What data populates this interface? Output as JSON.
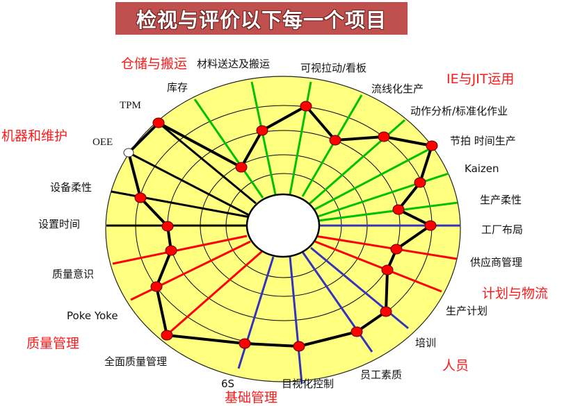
{
  "title": "检视与评价以下每一个项目",
  "colors": {
    "banner": "#C0504D",
    "fill": "#FFFF80",
    "machine": "#000000",
    "ie_jit": "#00C000",
    "quality_planning": "#FF0000",
    "people_basic": "#3333BB",
    "point": "#FF0000",
    "group_label": "#FF1A1A"
  },
  "groups": {
    "storage": "仓储与搬运",
    "ie_jit": "IE与JIT运用",
    "machine": "机器和维护",
    "planning": "计划与物流",
    "quality": "质量管理",
    "people": "人员",
    "basic": "基础管理"
  },
  "items": {
    "material": "材料送达及搬运",
    "pull": "可视拉动/看板",
    "inventory": "库存",
    "flow": "流线化生产",
    "motion": "动作分析/标准化作业",
    "tpm": "TPM",
    "oee": "OEE",
    "takt": "节拍 时间生产",
    "kaizen": "Kaizen",
    "equip_flex": "设备柔性",
    "prod_flex": "生产柔性",
    "setup": "设置时间",
    "layout": "工厂布局",
    "supplier": "供应商管理",
    "quality_aware": "质量意识",
    "prod_plan": "生产计划",
    "pokayoke": "Poke Yoke",
    "training": "培训",
    "tqm": "全面质量管理",
    "staff": "员工素质",
    "6s": "6S",
    "visual": "目视化控制"
  }
}
